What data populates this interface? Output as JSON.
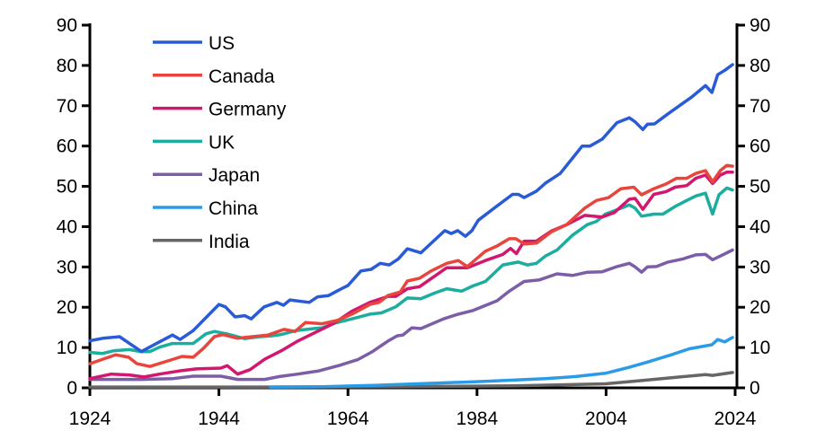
{
  "chart_data": {
    "type": "line",
    "title": "",
    "xlabel": "",
    "ylabel": "",
    "xlim": [
      1924,
      2024
    ],
    "ylim": [
      0,
      90
    ],
    "x_ticks": [
      "1924",
      "1944",
      "1964",
      "1984",
      "2004",
      "2024"
    ],
    "y_ticks": [
      "0",
      "10",
      "20",
      "30",
      "40",
      "50",
      "60",
      "70",
      "80",
      "90"
    ],
    "y_axis_right_mirrors_left": true,
    "grid": false,
    "legend_position": "top-left",
    "series": [
      {
        "name": "US",
        "color": "#2a5bd7",
        "points": [
          [
            1924,
            11.7
          ],
          [
            1926,
            12.3
          ],
          [
            1928.6,
            12.7
          ],
          [
            1932,
            9.0
          ],
          [
            1934.2,
            10.9
          ],
          [
            1936.8,
            13.1
          ],
          [
            1938,
            12.0
          ],
          [
            1940,
            14.2
          ],
          [
            1944,
            20.7
          ],
          [
            1945,
            20.1
          ],
          [
            1946.5,
            17.6
          ],
          [
            1948,
            17.9
          ],
          [
            1949,
            17.1
          ],
          [
            1951,
            20.1
          ],
          [
            1953,
            21.2
          ],
          [
            1954,
            20.5
          ],
          [
            1955,
            21.8
          ],
          [
            1958,
            21.2
          ],
          [
            1959.3,
            22.6
          ],
          [
            1961,
            22.9
          ],
          [
            1962.5,
            24.2
          ],
          [
            1964,
            25.4
          ],
          [
            1966,
            29.0
          ],
          [
            1967.6,
            29.4
          ],
          [
            1969,
            30.9
          ],
          [
            1970.4,
            30.5
          ],
          [
            1971.8,
            32.0
          ],
          [
            1973.2,
            34.5
          ],
          [
            1975.3,
            33.5
          ],
          [
            1979,
            39.0
          ],
          [
            1980,
            38.3
          ],
          [
            1981,
            39.0
          ],
          [
            1982.2,
            37.6
          ],
          [
            1983.2,
            39.0
          ],
          [
            1984.2,
            41.6
          ],
          [
            1987,
            45.0
          ],
          [
            1989.5,
            48.0
          ],
          [
            1990.4,
            48.0
          ],
          [
            1991.3,
            47.2
          ],
          [
            1993.2,
            48.8
          ],
          [
            1994.6,
            50.8
          ],
          [
            1996.9,
            53.2
          ],
          [
            1998.8,
            57.0
          ],
          [
            2000.3,
            60.0
          ],
          [
            2001.5,
            60.0
          ],
          [
            2003.4,
            61.7
          ],
          [
            2005.7,
            65.8
          ],
          [
            2007.6,
            67.0
          ],
          [
            2008.5,
            66.0
          ],
          [
            2009.7,
            64.1
          ],
          [
            2010.4,
            65.4
          ],
          [
            2011.5,
            65.5
          ],
          [
            2013.6,
            68.0
          ],
          [
            2015.9,
            70.6
          ],
          [
            2017.3,
            72.2
          ],
          [
            2019.4,
            75.0
          ],
          [
            2020.4,
            73.3
          ],
          [
            2021.3,
            77.7
          ],
          [
            2022.4,
            78.8
          ],
          [
            2023.6,
            80.2
          ]
        ]
      },
      {
        "name": "Canada",
        "color": "#e8453c",
        "points": [
          [
            1924,
            6.0
          ],
          [
            1926,
            7.1
          ],
          [
            1928,
            8.2
          ],
          [
            1930,
            7.6
          ],
          [
            1931.3,
            6.0
          ],
          [
            1933.3,
            5.3
          ],
          [
            1936.3,
            6.8
          ],
          [
            1938.3,
            7.8
          ],
          [
            1940,
            7.6
          ],
          [
            1941.6,
            9.8
          ],
          [
            1943.3,
            12.7
          ],
          [
            1944.6,
            13.2
          ],
          [
            1946.9,
            12.3
          ],
          [
            1949.2,
            12.7
          ],
          [
            1951.6,
            13.1
          ],
          [
            1954.1,
            14.5
          ],
          [
            1955.8,
            14.0
          ],
          [
            1957.4,
            16.2
          ],
          [
            1960,
            15.9
          ],
          [
            1962.3,
            16.7
          ],
          [
            1964.6,
            18.3
          ],
          [
            1967.4,
            20.7
          ],
          [
            1968.8,
            21.2
          ],
          [
            1970.2,
            22.9
          ],
          [
            1972.1,
            23.8
          ],
          [
            1973.2,
            26.5
          ],
          [
            1975.1,
            27.2
          ],
          [
            1976.9,
            29.0
          ],
          [
            1979.3,
            30.9
          ],
          [
            1981.1,
            31.6
          ],
          [
            1982.5,
            30.1
          ],
          [
            1985.3,
            33.9
          ],
          [
            1987.1,
            35.2
          ],
          [
            1989,
            37.0
          ],
          [
            1990,
            37.0
          ],
          [
            1991.3,
            35.7
          ],
          [
            1993.2,
            35.9
          ],
          [
            1995.5,
            38.7
          ],
          [
            1997.9,
            40.5
          ],
          [
            2000.7,
            44.6
          ],
          [
            2002.5,
            46.5
          ],
          [
            2004.4,
            47.2
          ],
          [
            2006.3,
            49.4
          ],
          [
            2008.3,
            49.8
          ],
          [
            2009.5,
            47.9
          ],
          [
            2011.4,
            49.4
          ],
          [
            2013.3,
            50.6
          ],
          [
            2014.9,
            52.0
          ],
          [
            2016.5,
            52.0
          ],
          [
            2017.9,
            53.2
          ],
          [
            2019.4,
            53.9
          ],
          [
            2020.5,
            51.1
          ],
          [
            2021.7,
            53.9
          ],
          [
            2022.7,
            55.2
          ],
          [
            2023.6,
            55.0
          ]
        ]
      },
      {
        "name": "Germany",
        "color": "#d1176f",
        "points": [
          [
            1924,
            2.3
          ],
          [
            1927.3,
            3.4
          ],
          [
            1930.1,
            3.2
          ],
          [
            1932.4,
            2.7
          ],
          [
            1934.8,
            3.4
          ],
          [
            1938.3,
            4.3
          ],
          [
            1940.5,
            4.7
          ],
          [
            1944.3,
            4.9
          ],
          [
            1945.3,
            5.5
          ],
          [
            1946.9,
            3.4
          ],
          [
            1948.8,
            4.5
          ],
          [
            1951.1,
            7.1
          ],
          [
            1953.9,
            9.4
          ],
          [
            1956.2,
            11.6
          ],
          [
            1959,
            13.8
          ],
          [
            1961.8,
            16.0
          ],
          [
            1964.6,
            19.0
          ],
          [
            1967.4,
            21.2
          ],
          [
            1970.2,
            22.7
          ],
          [
            1971.4,
            22.7
          ],
          [
            1973.2,
            24.6
          ],
          [
            1975.1,
            25.1
          ],
          [
            1979.3,
            29.8
          ],
          [
            1982.5,
            29.8
          ],
          [
            1985.3,
            31.6
          ],
          [
            1988,
            33.1
          ],
          [
            1989.2,
            34.6
          ],
          [
            1990.1,
            33.3
          ],
          [
            1991.3,
            36.4
          ],
          [
            1993.2,
            36.4
          ],
          [
            1995.5,
            38.9
          ],
          [
            1997.9,
            40.5
          ],
          [
            2000.7,
            42.8
          ],
          [
            2003.4,
            42.4
          ],
          [
            2005.3,
            43.5
          ],
          [
            2007.6,
            46.8
          ],
          [
            2008.5,
            47.0
          ],
          [
            2009.7,
            44.3
          ],
          [
            2011.4,
            48.0
          ],
          [
            2013.3,
            48.7
          ],
          [
            2014.7,
            49.8
          ],
          [
            2016.5,
            50.2
          ],
          [
            2017.9,
            52.0
          ],
          [
            2019.4,
            52.8
          ],
          [
            2020.5,
            50.7
          ],
          [
            2021.7,
            52.8
          ],
          [
            2022.7,
            53.5
          ],
          [
            2023.6,
            53.5
          ]
        ]
      },
      {
        "name": "UK",
        "color": "#1aada0",
        "points": [
          [
            1924,
            8.8
          ],
          [
            1925.9,
            8.5
          ],
          [
            1927.7,
            9.2
          ],
          [
            1930.1,
            9.5
          ],
          [
            1931.9,
            9.0
          ],
          [
            1933.3,
            9.0
          ],
          [
            1934.8,
            10.1
          ],
          [
            1936.8,
            11.0
          ],
          [
            1940,
            11.0
          ],
          [
            1942,
            13.4
          ],
          [
            1943.3,
            14.0
          ],
          [
            1945.2,
            13.4
          ],
          [
            1948,
            12.2
          ],
          [
            1950.3,
            12.7
          ],
          [
            1952.1,
            12.9
          ],
          [
            1953.6,
            13.2
          ],
          [
            1955.9,
            14.2
          ],
          [
            1958.7,
            14.7
          ],
          [
            1960,
            14.9
          ],
          [
            1961.8,
            16.0
          ],
          [
            1964.6,
            17.1
          ],
          [
            1967.4,
            18.3
          ],
          [
            1969.2,
            18.6
          ],
          [
            1971.4,
            20.1
          ],
          [
            1973.2,
            22.3
          ],
          [
            1975.3,
            22.1
          ],
          [
            1977.4,
            23.5
          ],
          [
            1979.3,
            24.6
          ],
          [
            1981.6,
            24.0
          ],
          [
            1983.4,
            25.3
          ],
          [
            1985.3,
            26.4
          ],
          [
            1988,
            30.5
          ],
          [
            1990.4,
            31.2
          ],
          [
            1991.8,
            30.5
          ],
          [
            1993.2,
            30.9
          ],
          [
            1994.6,
            32.7
          ],
          [
            1996.4,
            34.2
          ],
          [
            1998.8,
            37.9
          ],
          [
            2001.1,
            40.5
          ],
          [
            2002.5,
            41.3
          ],
          [
            2003.9,
            43.1
          ],
          [
            2005.7,
            44.2
          ],
          [
            2007.6,
            45.4
          ],
          [
            2008.5,
            44.6
          ],
          [
            2009.5,
            42.6
          ],
          [
            2011.4,
            43.1
          ],
          [
            2012.8,
            43.1
          ],
          [
            2014.7,
            45.0
          ],
          [
            2016.5,
            46.5
          ],
          [
            2017.9,
            47.6
          ],
          [
            2019.4,
            48.3
          ],
          [
            2020.5,
            43.1
          ],
          [
            2021.5,
            47.9
          ],
          [
            2022.7,
            49.6
          ],
          [
            2023.6,
            49.1
          ]
        ]
      },
      {
        "name": "Japan",
        "color": "#7b5ea7",
        "points": [
          [
            1924,
            2.1
          ],
          [
            1931.9,
            2.1
          ],
          [
            1936.9,
            2.3
          ],
          [
            1940,
            2.9
          ],
          [
            1944.3,
            2.9
          ],
          [
            1946.9,
            2.1
          ],
          [
            1951.1,
            2.1
          ],
          [
            1953.4,
            2.8
          ],
          [
            1956.2,
            3.4
          ],
          [
            1959.5,
            4.2
          ],
          [
            1962.7,
            5.6
          ],
          [
            1965.5,
            7.0
          ],
          [
            1967.8,
            9.0
          ],
          [
            1970.2,
            11.6
          ],
          [
            1971.6,
            12.9
          ],
          [
            1972.5,
            13.1
          ],
          [
            1973.9,
            14.9
          ],
          [
            1975.3,
            14.7
          ],
          [
            1978.8,
            17.1
          ],
          [
            1981.1,
            18.3
          ],
          [
            1983.4,
            19.2
          ],
          [
            1987.1,
            21.6
          ],
          [
            1989,
            24.0
          ],
          [
            1991.3,
            26.4
          ],
          [
            1993.7,
            26.8
          ],
          [
            1996.4,
            28.3
          ],
          [
            1998.8,
            27.9
          ],
          [
            2001.1,
            28.7
          ],
          [
            2003.4,
            28.8
          ],
          [
            2005.7,
            30.1
          ],
          [
            2007.6,
            30.9
          ],
          [
            2008.5,
            30.0
          ],
          [
            2009.5,
            28.7
          ],
          [
            2010.4,
            30.0
          ],
          [
            2011.8,
            30.1
          ],
          [
            2013.6,
            31.2
          ],
          [
            2015.9,
            32.0
          ],
          [
            2017.9,
            33.0
          ],
          [
            2019.4,
            33.1
          ],
          [
            2020.5,
            31.8
          ],
          [
            2021.7,
            32.7
          ],
          [
            2023.6,
            34.2
          ]
        ]
      },
      {
        "name": "China",
        "color": "#2b9be8",
        "points": [
          [
            1952,
            0.2
          ],
          [
            1960,
            0.3
          ],
          [
            1968,
            0.6
          ],
          [
            1971.4,
            0.8
          ],
          [
            1985.3,
            1.6
          ],
          [
            1994.6,
            2.3
          ],
          [
            1999.3,
            2.8
          ],
          [
            2003.9,
            3.6
          ],
          [
            2007.6,
            5.1
          ],
          [
            2010.4,
            6.4
          ],
          [
            2014.1,
            8.2
          ],
          [
            2016.9,
            9.7
          ],
          [
            2020.4,
            10.7
          ],
          [
            2021.3,
            12.0
          ],
          [
            2022.4,
            11.4
          ],
          [
            2023.6,
            12.5
          ]
        ]
      },
      {
        "name": "India",
        "color": "#666666",
        "points": [
          [
            1924,
            0.2
          ],
          [
            1950,
            0.2
          ],
          [
            1970,
            0.3
          ],
          [
            1990,
            0.5
          ],
          [
            2003.9,
            1.0
          ],
          [
            2009.5,
            1.8
          ],
          [
            2015.4,
            2.7
          ],
          [
            2019.4,
            3.3
          ],
          [
            2020.5,
            3.1
          ],
          [
            2023.6,
            3.8
          ]
        ]
      }
    ]
  }
}
